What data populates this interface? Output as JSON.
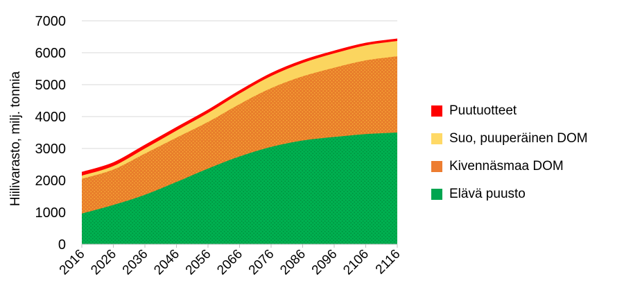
{
  "chart_data": {
    "type": "area",
    "stacked": true,
    "title": "",
    "xlabel": "",
    "ylabel": "Hiilivarasto, milj. tonnia",
    "x": [
      2016,
      2026,
      2036,
      2046,
      2056,
      2066,
      2076,
      2086,
      2096,
      2106,
      2116
    ],
    "x_tick_labels": [
      "2016",
      "2026",
      "2036",
      "2046",
      "2056",
      "2066",
      "2076",
      "2086",
      "2096",
      "2106",
      "2116"
    ],
    "y_ticks": [
      0,
      1000,
      2000,
      3000,
      4000,
      5000,
      6000,
      7000
    ],
    "y_tick_labels": [
      "0",
      "1000",
      "2000",
      "3000",
      "4000",
      "5000",
      "6000",
      "7000"
    ],
    "ylim": [
      0,
      7000
    ],
    "grid": true,
    "series": [
      {
        "name": "Elävä puusto",
        "color": "#00B050",
        "pattern_dot_color": "#00913E",
        "values": [
          960,
          1230,
          1550,
          1950,
          2370,
          2750,
          3050,
          3250,
          3360,
          3450,
          3500
        ]
      },
      {
        "name": "Kivennäsmaa DOM",
        "color": "#E87D2B",
        "pattern_dot_color": "#F6A836",
        "values": [
          1090,
          1110,
          1290,
          1390,
          1460,
          1640,
          1840,
          2010,
          2170,
          2310,
          2390
        ]
      },
      {
        "name": "Suo, puuperäinen DOM",
        "color": "#FBD55F",
        "pattern_dot_color": "",
        "values": [
          100,
          110,
          160,
          220,
          280,
          330,
          380,
          420,
          450,
          470,
          480
        ]
      },
      {
        "name": "Puutuotteet",
        "color": "#FE0000",
        "pattern_dot_color": "",
        "values": [
          100,
          100,
          100,
          95,
          90,
          85,
          80,
          75,
          70,
          65,
          60
        ]
      }
    ],
    "legend_entries": [
      {
        "label": "Puutuotteet",
        "color": "#FE0000"
      },
      {
        "label": "Suo, puuperäinen DOM",
        "color": "#FFD966"
      },
      {
        "label": "Kivennäsmaa DOM",
        "color": "#ED7D31"
      },
      {
        "label": "Elävä puusto",
        "color": "#00A550"
      }
    ],
    "legend_position": "right",
    "colors": {
      "gridline": "#D9D9D9",
      "axis_line": "#BFBFBF",
      "text": "#000000",
      "background": "#FFFFFF"
    }
  }
}
